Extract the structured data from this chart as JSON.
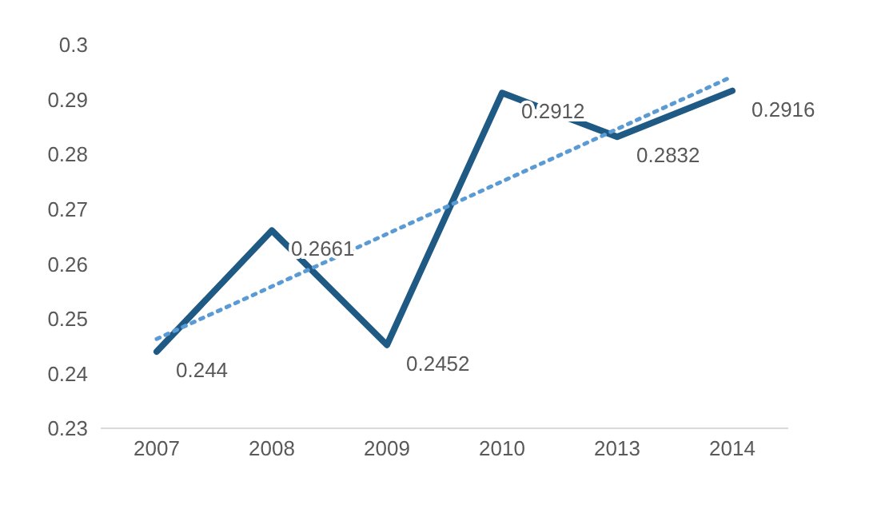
{
  "chart_data": {
    "type": "line",
    "categories": [
      "2007",
      "2008",
      "2009",
      "2010",
      "2013",
      "2014"
    ],
    "series": [
      {
        "color": "#1f5a85",
        "values": [
          0.244,
          0.2661,
          0.2452,
          0.2912,
          0.2832,
          0.2916
        ],
        "value_labels": [
          "0.244",
          "0.2661",
          "0.2452",
          "0.2912",
          "0.2832",
          "0.2916"
        ],
        "line_style": "solid"
      },
      {
        "type": "line",
        "color": "#5b9bd5",
        "values": [
          0.2463,
          null,
          null,
          null,
          null,
          0.2942
        ],
        "line_style": "dotted"
      }
    ],
    "ylim": [
      0.23,
      0.3
    ],
    "yticks": [
      0.23,
      0.24,
      0.25,
      0.26,
      0.27,
      0.28,
      0.29,
      0.3
    ],
    "grid": false,
    "legend": false,
    "marker": "none"
  }
}
